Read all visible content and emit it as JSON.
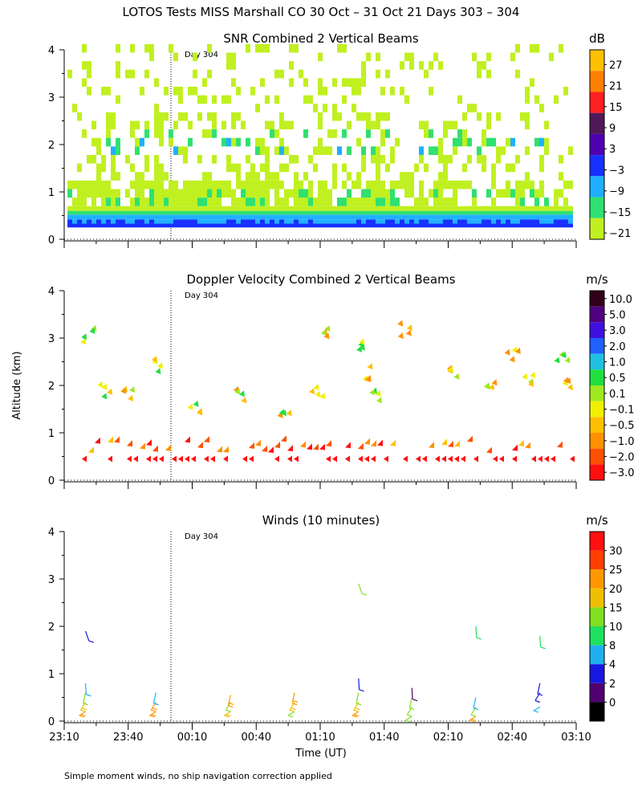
{
  "figure": {
    "title": "LOTOS Tests MISS Marshall CO  30 Oct – 31 Oct 21 Days 303 – 304",
    "shared_ylabel": "Altitude (km)",
    "xlabel": "Time (UT)",
    "footnote": "Simple moment winds, no ship navigation correction applied",
    "day_marker": "Day 304"
  },
  "chart_data": [
    {
      "type": "heatmap",
      "title": "SNR Combined 2 Vertical Beams",
      "unit": "dB",
      "ylabel": "Altitude (km)",
      "ylim": [
        0,
        4
      ],
      "yticks": [
        0,
        1,
        2,
        3,
        4
      ],
      "colorbar": {
        "labels": [
          "27",
          "21",
          "15",
          "9",
          "3",
          "−3",
          "−9",
          "−15",
          "−21"
        ],
        "colors": [
          "#ffc000",
          "#ff8000",
          "#ff2020",
          "#501858",
          "#5000b0",
          "#1830ff",
          "#20b0ff",
          "#30e070",
          "#c0f020"
        ]
      },
      "features": [
        {
          "name": "low persistent echo layer",
          "altitude_km": [
            0.25,
            0.7
          ],
          "snr_db": [
            -6,
            3
          ]
        },
        {
          "name": "patchy echoes",
          "altitude_km": [
            0.7,
            4.0
          ],
          "snr_db": [
            -21,
            -15
          ]
        },
        {
          "name": "enhanced layer",
          "altitude_km": [
            1.6,
            2.2
          ],
          "snr_db": [
            -9,
            3
          ]
        }
      ]
    },
    {
      "type": "heatmap",
      "title": "Doppler Velocity Combined 2 Vertical Beams",
      "unit": "m/s",
      "ylabel": "Altitude (km)",
      "ylim": [
        0,
        4
      ],
      "yticks": [
        0,
        1,
        2,
        3,
        4
      ],
      "colorbar": {
        "labels": [
          "10.0",
          "5.0",
          "3.0",
          "2.0",
          "1.0",
          "0.5",
          "0.1",
          "−0.1",
          "−0.5",
          "−1.0",
          "−2.0",
          "−3.0"
        ],
        "colors": [
          "#300018",
          "#500080",
          "#4010e0",
          "#2060ff",
          "#20c0e0",
          "#20e040",
          "#a0e820",
          "#f0f000",
          "#ffc000",
          "#ff9000",
          "#ff5000",
          "#ff1010"
        ]
      },
      "features": [
        {
          "name": "downward motion low level",
          "altitude_km": [
            0.3,
            0.8
          ],
          "velocity_ms": [
            -3.0,
            -0.5
          ]
        },
        {
          "name": "scattered cells",
          "altitude_km": [
            1.5,
            3.2
          ],
          "velocity_ms": [
            -1.0,
            2.0
          ]
        }
      ]
    },
    {
      "type": "scatter",
      "title": "Winds (10 minutes)",
      "unit": "m/s",
      "ylabel": "Altitude (km)",
      "ylim": [
        0,
        4
      ],
      "yticks": [
        0,
        1,
        2,
        3,
        4
      ],
      "colorbar": {
        "labels": [
          "30",
          "25",
          "20",
          "15",
          "10",
          "8",
          "4",
          "2",
          "0"
        ],
        "colors": [
          "#ff1010",
          "#ff4000",
          "#ff9800",
          "#f0c000",
          "#80e020",
          "#20e060",
          "#20b0f0",
          "#1818e0",
          "#500070",
          "#000000"
        ]
      },
      "wind_profiles": [
        {
          "time": "23:20",
          "altitudes_km": [
            0.2,
            0.4,
            0.6,
            0.8,
            1.9
          ],
          "speeds_ms": [
            22,
            18,
            14,
            6,
            3
          ]
        },
        {
          "time": "23:53",
          "altitudes_km": [
            0.2,
            0.4,
            0.6
          ],
          "speeds_ms": [
            23,
            20,
            5
          ]
        },
        {
          "time": "00:28",
          "altitudes_km": [
            0.2,
            0.4,
            0.55
          ],
          "speeds_ms": [
            18,
            14,
            22
          ]
        },
        {
          "time": "00:58",
          "altitudes_km": [
            0.2,
            0.4,
            0.6
          ],
          "speeds_ms": [
            14,
            16,
            22
          ]
        },
        {
          "time": "01:28",
          "altitudes_km": [
            0.2,
            0.4,
            0.6,
            0.9,
            2.9
          ],
          "speeds_ms": [
            22,
            18,
            14,
            3,
            12
          ]
        },
        {
          "time": "01:53",
          "altitudes_km": [
            0.1,
            0.3,
            0.5,
            0.7
          ],
          "speeds_ms": [
            14,
            12,
            10,
            0
          ]
        },
        {
          "time": "02:23",
          "altitudes_km": [
            0.1,
            0.3,
            0.5,
            2.0
          ],
          "speeds_ms": [
            22,
            14,
            5,
            9
          ]
        },
        {
          "time": "02:53",
          "altitudes_km": [
            0.3,
            0.6,
            0.8,
            1.8
          ],
          "speeds_ms": [
            4,
            3,
            3,
            9
          ]
        }
      ]
    }
  ],
  "xaxis": {
    "ticks": [
      "23:10",
      "23:40",
      "00:10",
      "00:40",
      "01:10",
      "01:40",
      "02:10",
      "02:40",
      "03:10"
    ]
  }
}
